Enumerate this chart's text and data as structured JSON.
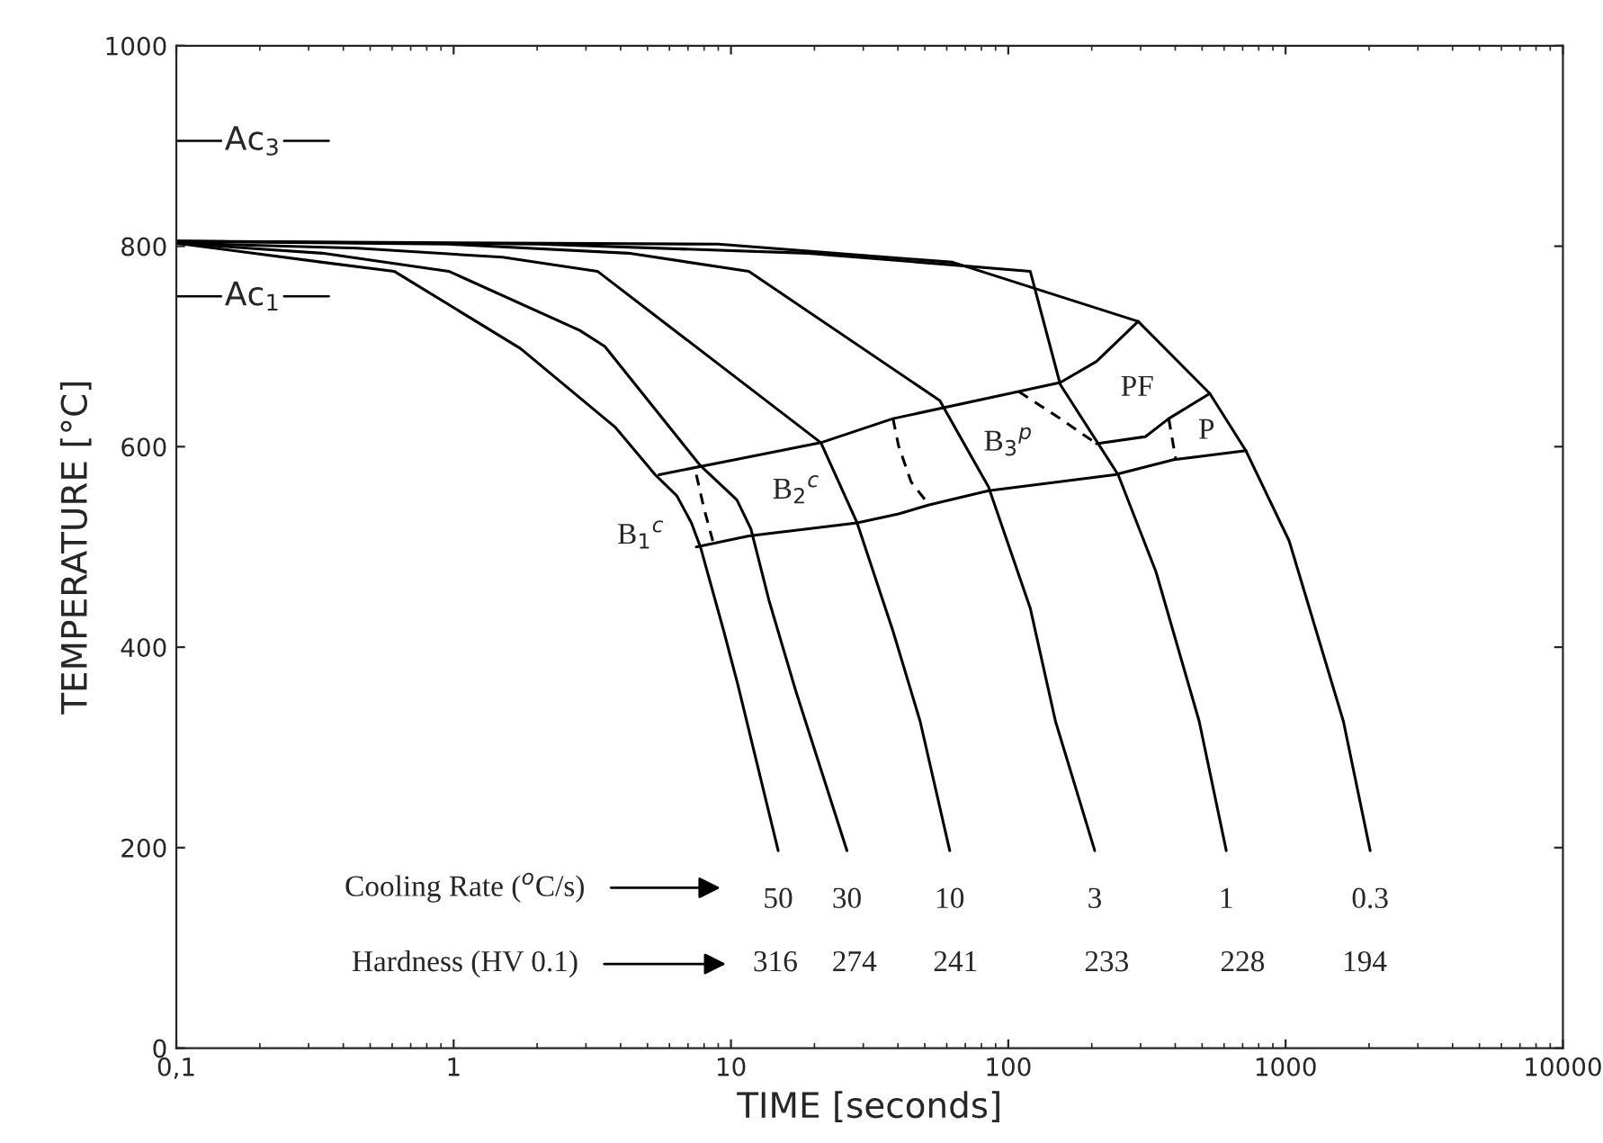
{
  "chart_data": {
    "type": "line",
    "xlabel": "TIME [seconds]",
    "ylabel": "TEMPERATURE [°C]",
    "log": "x",
    "xlim": [
      0.1,
      10000
    ],
    "xticks": [
      {
        "value": 0.1,
        "label": "0,1"
      },
      1,
      10,
      100,
      1000,
      10000
    ],
    "ylim": [
      0,
      1000
    ],
    "yticks": [
      0,
      200,
      400,
      600,
      800,
      1000
    ],
    "grid": false,
    "marker": "none",
    "series": [
      {
        "name": "50",
        "color": "#000000",
        "x": [
          0.1,
          0.336,
          0.61,
          1.74,
          3.84,
          5.33,
          6.38,
          7.2,
          7.76,
          9.42,
          10.6,
          14.8
        ],
        "values": [
          803,
          784,
          775,
          698,
          619,
          572,
          551,
          524,
          500,
          416,
          362,
          197
        ]
      },
      {
        "name": "30",
        "color": "#000000",
        "x": [
          0.1,
          0.336,
          0.96,
          2.85,
          3.51,
          7.76,
          10.5,
          11.8,
          13.7,
          17.1,
          26.2
        ],
        "values": [
          803,
          793,
          775,
          716,
          700,
          581,
          547,
          518,
          447,
          357,
          197
        ]
      },
      {
        "name": "10",
        "color": "#000000",
        "x": [
          0.1,
          0.45,
          1.5,
          3.3,
          21.1,
          28.5,
          38.4,
          48.1,
          61.5
        ],
        "values": [
          803,
          798,
          789,
          775,
          604,
          524,
          416,
          326,
          197
        ]
      },
      {
        "name": "3",
        "color": "#000000",
        "x": [
          0.1,
          0.96,
          4.27,
          11.6,
          56.6,
          84.8,
          120,
          148,
          205
        ],
        "values": [
          805,
          802,
          793,
          775,
          646,
          560,
          439,
          326,
          197
        ]
      },
      {
        "name": "1",
        "color": "#000000",
        "x": [
          0.1,
          2.02,
          19,
          120,
          154,
          249,
          341,
          488,
          611
        ],
        "values": [
          805,
          802,
          793,
          775,
          662,
          572,
          475,
          326,
          197
        ]
      },
      {
        "name": "0.3",
        "color": "#000000",
        "x": [
          0.1,
          9.0,
          63,
          294,
          533,
          719,
          1030,
          1616,
          2018
        ],
        "values": [
          805,
          802,
          784,
          725,
          653,
          596,
          506,
          326,
          197
        ]
      },
      {
        "color": "#000000",
        "x": [
          5.5,
          21.1,
          38.4,
          109,
          154,
          208,
          294
        ],
        "values": [
          572,
          604,
          628,
          655,
          664,
          685,
          725
        ]
      },
      {
        "color": "#000000",
        "x": [
          7.5,
          11.6,
          28.5,
          40.2,
          51.8,
          84.8,
          242,
          395,
          719
        ],
        "values": [
          500,
          511,
          524,
          533,
          542,
          556,
          572,
          587,
          596
        ]
      },
      {
        "color": "#000000",
        "x": [
          208,
          312,
          379,
          533
        ],
        "values": [
          603,
          610,
          628,
          653
        ]
      },
      {
        "color": "#000000",
        "line_style": "dashed",
        "x": [
          109,
          154,
          208
        ],
        "values": [
          655,
          628,
          603
        ]
      },
      {
        "color": "#000000",
        "line_style": "dashed",
        "x": [
          7.5,
          8.0,
          8.6
        ],
        "values": [
          572,
          538,
          506
        ]
      },
      {
        "color": "#000000",
        "line_style": "dashed",
        "x": [
          38.4,
          40.2,
          44.6,
          51.8
        ],
        "values": [
          628,
          601,
          565,
          542
        ]
      },
      {
        "color": "#000000",
        "line_style": "dashed",
        "x": [
          379,
          390,
          402
        ],
        "values": [
          628,
          608,
          587
        ]
      }
    ],
    "ref_lines": [
      {
        "axis": "y",
        "value": 905,
        "label": "Ac$_{3}$"
      },
      {
        "axis": "y",
        "value": 750,
        "label": "Ac$_{1}$"
      }
    ],
    "annotations": [
      "B$_{1}$$^{c}$",
      "B$_{2}$$^{c}$",
      "B$_{3}$$^{p}$",
      "PF",
      "P",
      "Cooling Rate ($^{o}$C/s)",
      "Hardness (HV 0.1)",
      "316",
      "274",
      "241",
      "233",
      "228",
      "194"
    ]
  }
}
